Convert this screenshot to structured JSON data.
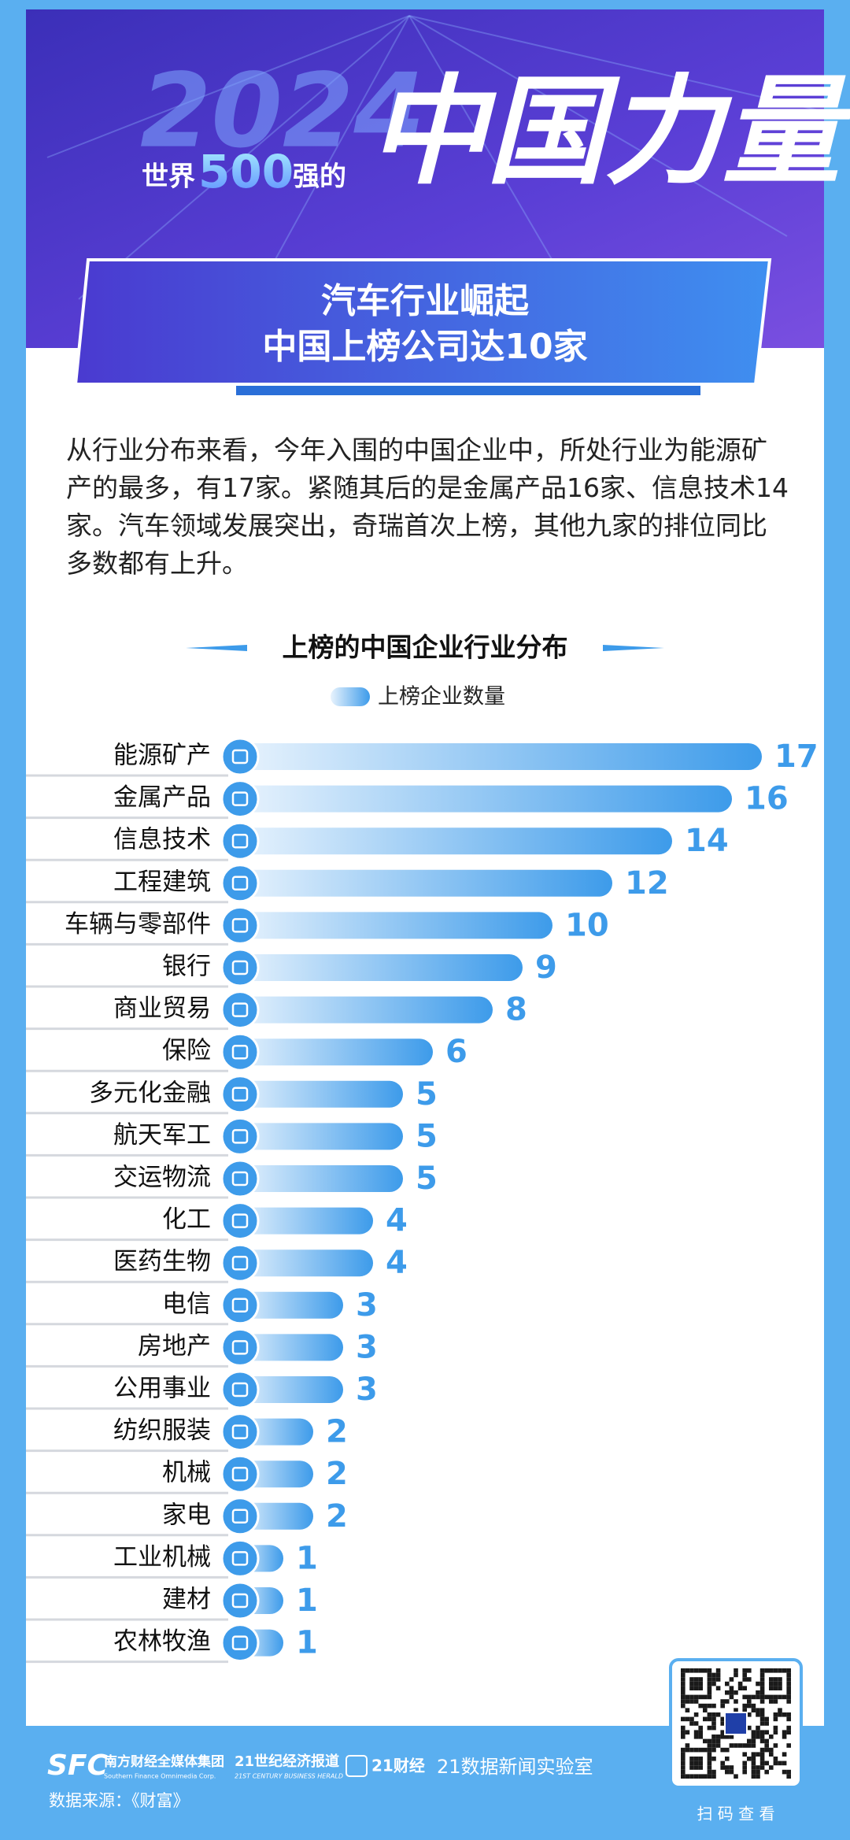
{
  "header": {
    "year": "2024",
    "prefix": "世界",
    "number": "500",
    "suffix": "强的",
    "headline": "中国力量",
    "banner_line1": "汽车行业崛起",
    "banner_line2": "中国上榜公司达10家"
  },
  "intro": "从行业分布来看，今年入围的中国企业中，所处行业为能源矿产的最多，有17家。紧随其后的是金属产品16家、信息技术14家。汽车领域发展突出，奇瑞首次上榜，其他九家的排位同比多数都有上升。",
  "chart_data": {
    "type": "bar",
    "orientation": "horizontal",
    "title": "上榜的中国企业行业分布",
    "categories": [
      "能源矿产",
      "金属产品",
      "信息技术",
      "工程建筑",
      "车辆与零部件",
      "银行",
      "商业贸易",
      "保险",
      "多元化金融",
      "航天军工",
      "交运物流",
      "化工",
      "医药生物",
      "电信",
      "房地产",
      "公用事业",
      "纺织服装",
      "机械",
      "家电",
      "工业机械",
      "建材",
      "农林牧渔"
    ],
    "series": [
      {
        "name": "上榜企业数量",
        "color": "#3d9bea",
        "values": [
          17,
          16,
          14,
          12,
          10,
          9,
          8,
          6,
          5,
          5,
          5,
          4,
          4,
          3,
          3,
          3,
          2,
          2,
          2,
          1,
          1,
          1
        ]
      }
    ],
    "data_labels": true
  },
  "footer": {
    "logo1": "SFC",
    "logo1_name": "南方财经全媒体集团",
    "logo1_en": "Southern Finance Omnimedia Corp.",
    "logo2_name": "21世纪经济报道",
    "logo2_en": "21ST CENTURY BUSINESS HERALD",
    "logo3_name": "21财经",
    "lab": "21数据新闻实验室",
    "source": "数据来源：《财富》",
    "scan": "扫 码 查 看"
  }
}
